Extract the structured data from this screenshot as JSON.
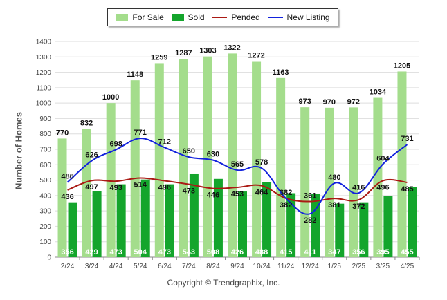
{
  "legend": {
    "for_sale": "For Sale",
    "sold": "Sold",
    "pended": "Pended",
    "new_listing": "New Listing"
  },
  "copyright": "Copyright © Trendgraphix, Inc.",
  "colors": {
    "for_sale": "#a4dd8c",
    "sold": "#14a52c",
    "pended": "#aa1a14",
    "new_listing": "#1222dd",
    "grid": "#dddddd"
  },
  "chart_data": {
    "type": "bar",
    "ylabel": "Number of Homes",
    "ylim": [
      0,
      1400
    ],
    "yticks": [
      0,
      100,
      200,
      300,
      400,
      500,
      600,
      700,
      800,
      900,
      1000,
      1100,
      1200,
      1300,
      1400
    ],
    "grid": true,
    "legend_position": "top-center",
    "categories": [
      "2/24",
      "3/24",
      "4/24",
      "5/24",
      "6/24",
      "7/24",
      "8/24",
      "9/24",
      "10/24",
      "11/24",
      "12/24",
      "1/25",
      "2/25",
      "3/25",
      "4/25"
    ],
    "series": [
      {
        "name": "For Sale",
        "type": "bar",
        "values": [
          770,
          832,
          1000,
          1148,
          1259,
          1287,
          1303,
          1322,
          1272,
          1163,
          973,
          970,
          972,
          1034,
          1205
        ]
      },
      {
        "name": "Sold",
        "type": "bar",
        "values": [
          356,
          429,
          473,
          504,
          473,
          543,
          508,
          426,
          488,
          415,
          411,
          347,
          356,
          395,
          455
        ]
      },
      {
        "name": "Pended",
        "type": "line",
        "values": [
          436,
          497,
          493,
          514,
          496,
          473,
          446,
          453,
          464,
          382,
          361,
          381,
          372,
          496,
          485
        ]
      },
      {
        "name": "New Listing",
        "type": "line",
        "values": [
          486,
          626,
          698,
          771,
          712,
          650,
          630,
          565,
          578,
          382,
          282,
          480,
          416,
          604,
          731
        ]
      }
    ]
  }
}
